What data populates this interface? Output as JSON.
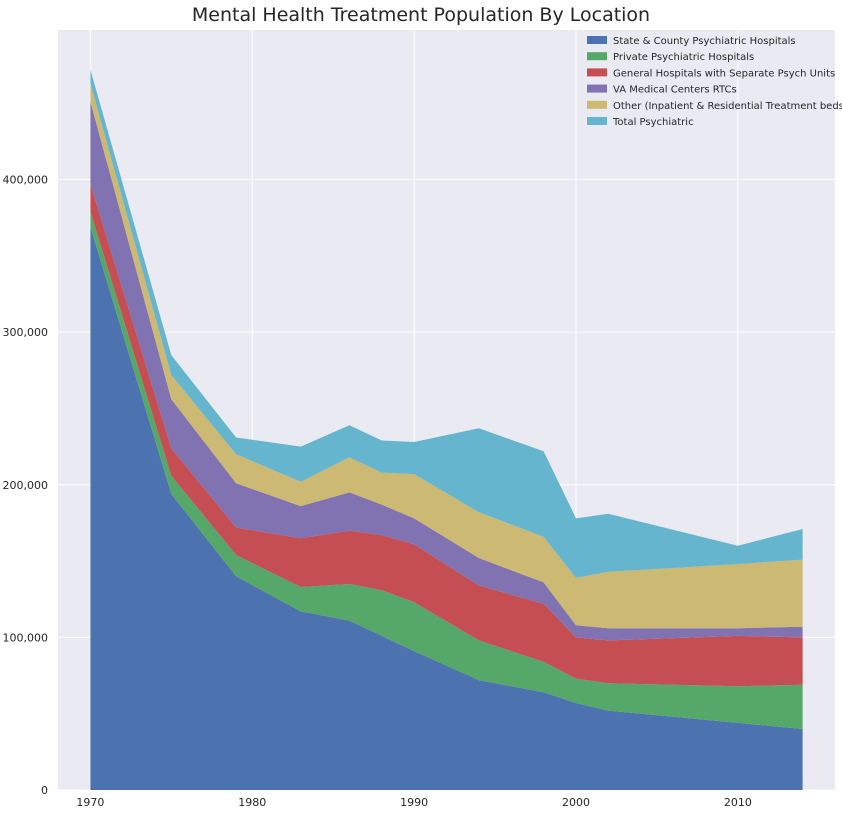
{
  "chart_data": {
    "type": "area",
    "stacked": true,
    "title": "Mental Health Treatment Population By Location",
    "xlabel": "",
    "ylabel": "",
    "x": [
      1970,
      1975,
      1979,
      1983,
      1986,
      1988,
      1990,
      1994,
      1998,
      2000,
      2002,
      2010,
      2014
    ],
    "xlim": [
      1968,
      2016
    ],
    "ylim": [
      0,
      498000
    ],
    "xticks": [
      1970,
      1980,
      1990,
      2000,
      2010
    ],
    "yticks": [
      0,
      100000,
      200000,
      300000,
      400000
    ],
    "ytick_labels": [
      "0",
      "100,000",
      "200,000",
      "300,000",
      "400,000"
    ],
    "grid": true,
    "legend_position": "top-right",
    "series": [
      {
        "name": "State & County Psychiatric Hospitals",
        "color": "#4c72b0",
        "values": [
          369000,
          194000,
          140000,
          117000,
          111000,
          101000,
          91000,
          72000,
          64000,
          57000,
          52000,
          44000,
          40000
        ]
      },
      {
        "name": "Private Psychiatric Hospitals",
        "color": "#55a868",
        "values": [
          10000,
          12000,
          14000,
          16000,
          24000,
          30000,
          32000,
          26000,
          20000,
          16000,
          18000,
          24000,
          29000
        ]
      },
      {
        "name": "General Hospitals with Separate Psych Units",
        "color": "#c44e52",
        "values": [
          18000,
          18000,
          18000,
          32000,
          35000,
          36000,
          38000,
          36000,
          38000,
          27000,
          28000,
          33000,
          31000
        ]
      },
      {
        "name": "VA Medical Centers RTCs",
        "color": "#8172b2",
        "values": [
          54000,
          32000,
          29000,
          21000,
          25000,
          20000,
          17000,
          18000,
          14000,
          8000,
          8000,
          5000,
          7000
        ]
      },
      {
        "name": "Other (Inpatient & Residential Treatment beds)",
        "color": "#ccb974",
        "values": [
          12000,
          16000,
          19000,
          16000,
          23000,
          21000,
          29000,
          30000,
          30000,
          31000,
          37000,
          42000,
          44000
        ]
      },
      {
        "name": "Total Psychiatric",
        "color": "#64b5cd",
        "values": [
          9000,
          13000,
          11000,
          23000,
          21000,
          21000,
          21000,
          55000,
          56000,
          39000,
          38000,
          12000,
          20000
        ]
      }
    ]
  }
}
